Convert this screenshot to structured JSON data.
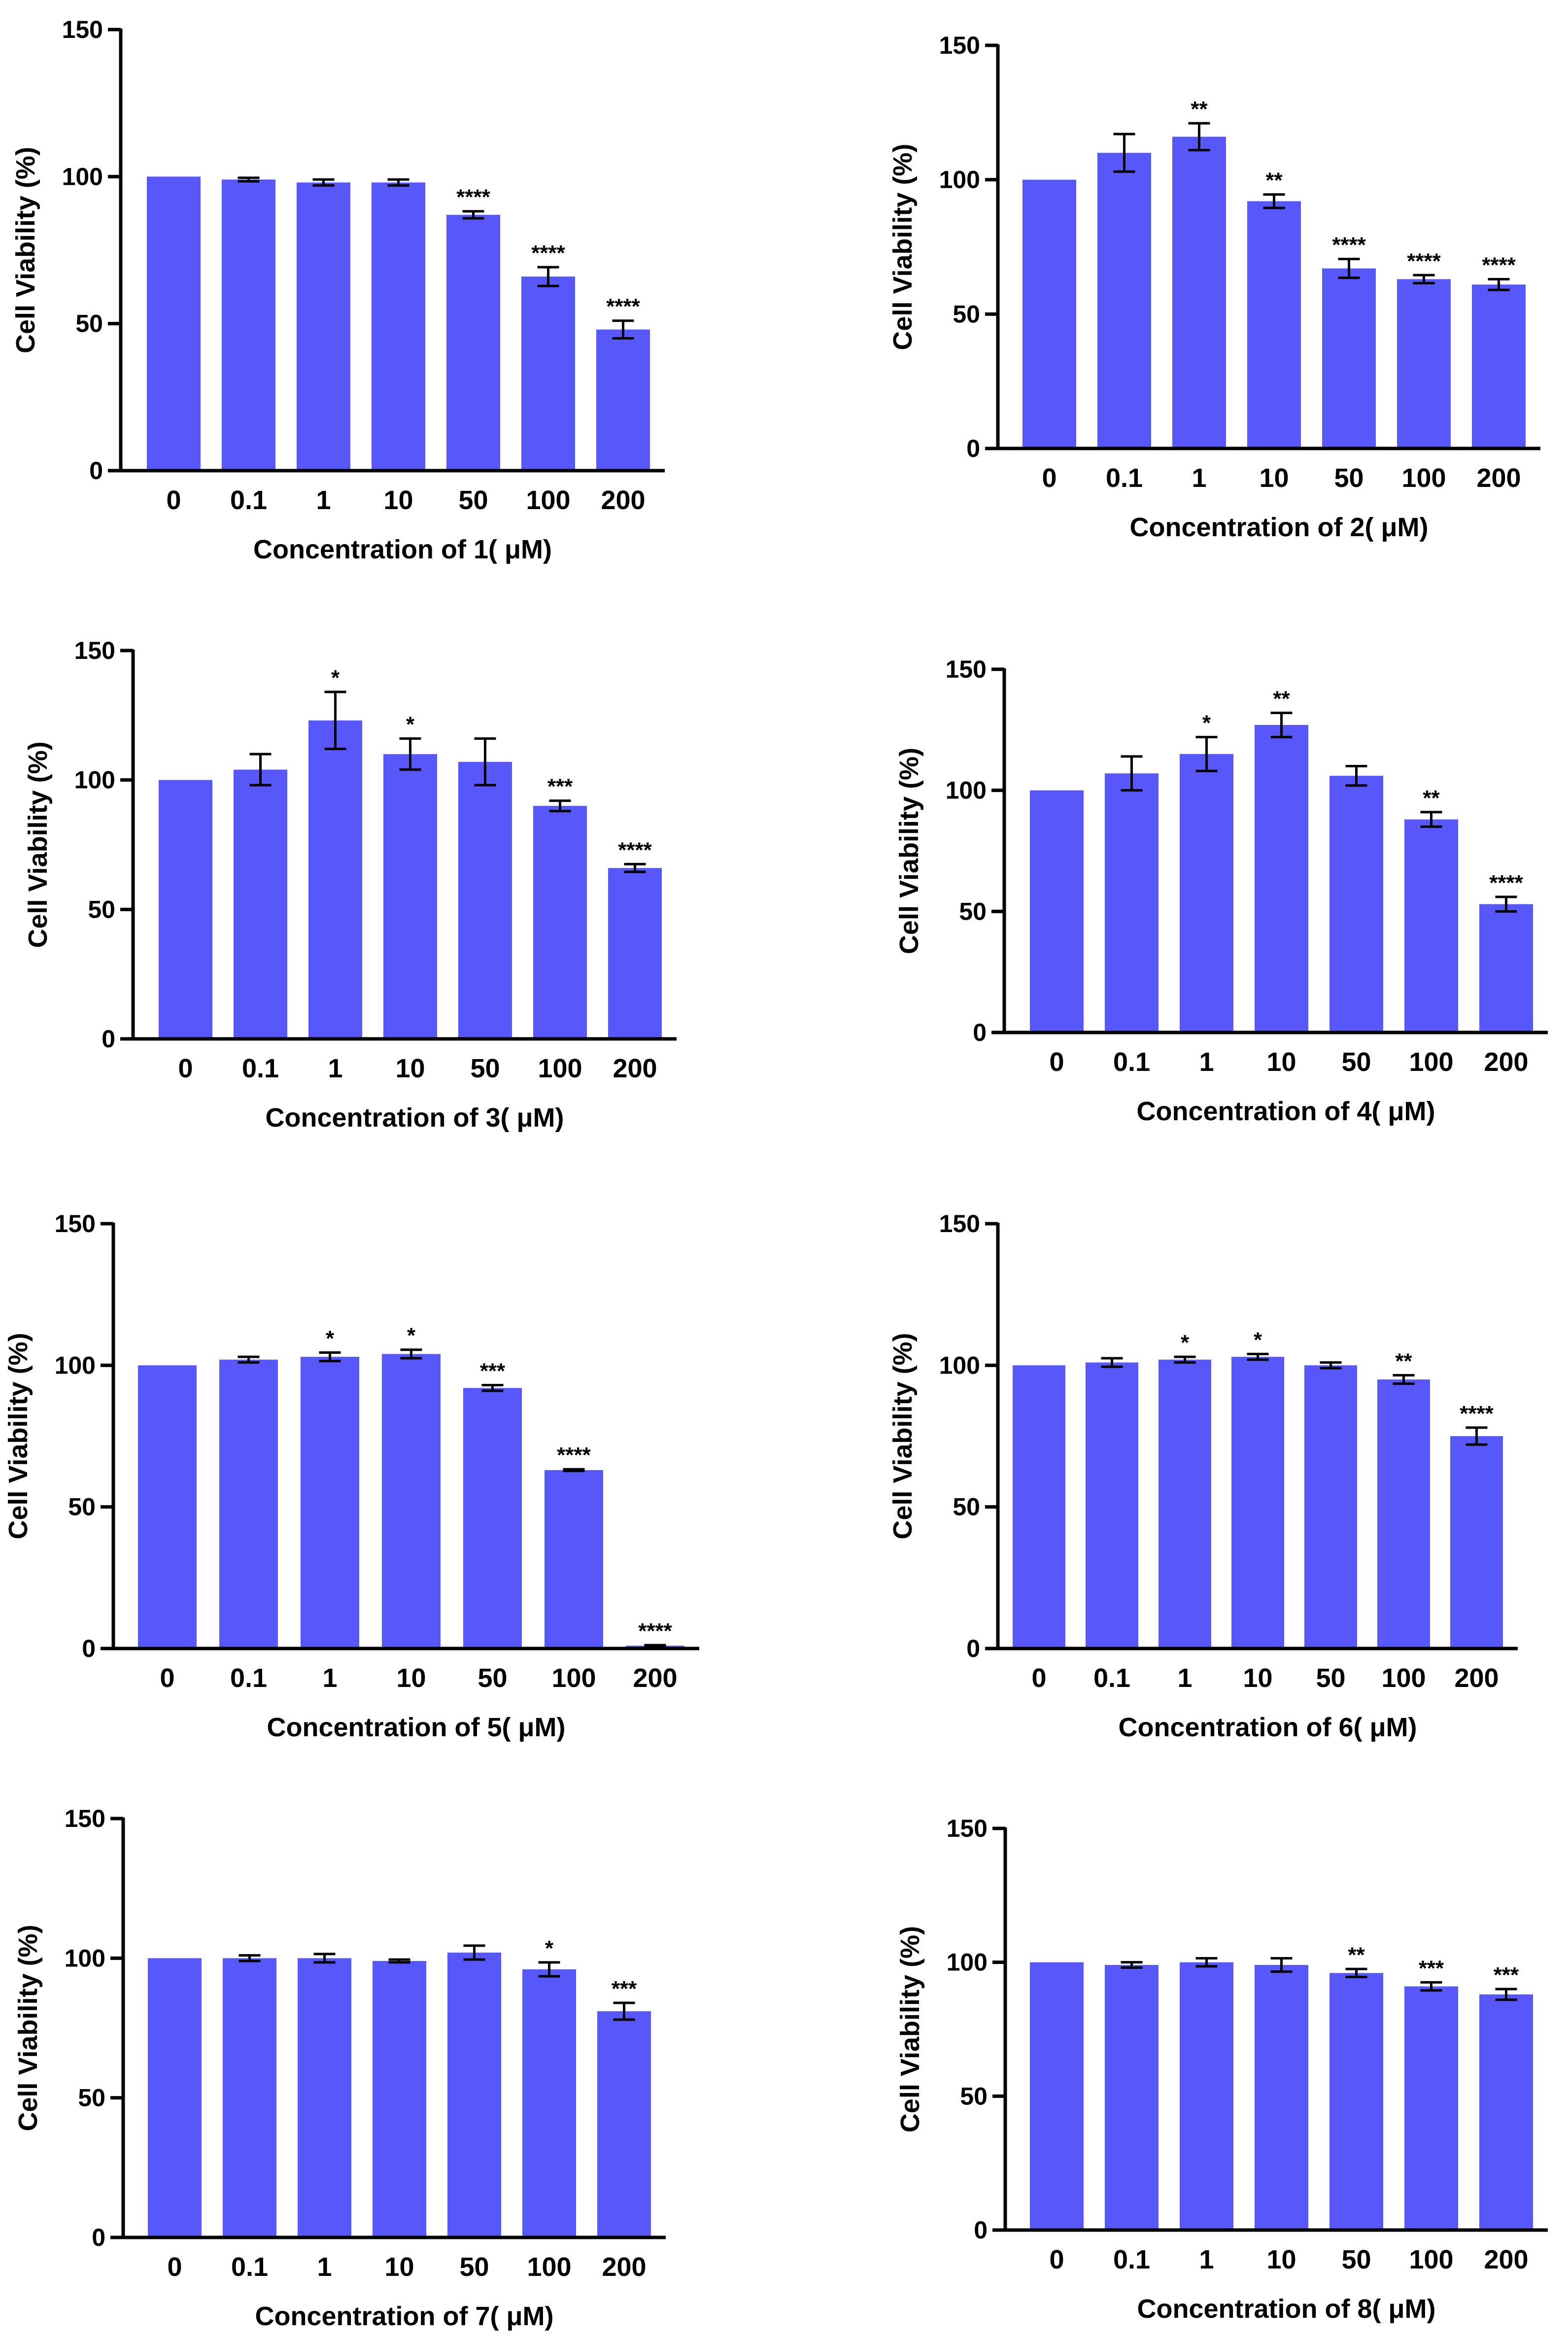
{
  "chart_data": [
    {
      "type": "bar",
      "title": "",
      "xlabel": "Concentration of 1( μM)",
      "ylabel": "Cell Viability (%)",
      "ylim": [
        0,
        150
      ],
      "yticks": [
        "0",
        "50",
        "100",
        "150"
      ],
      "categories": [
        "0",
        "0.1",
        "1",
        "10",
        "50",
        "100",
        "200"
      ],
      "values": [
        100,
        99,
        98,
        98,
        87,
        66,
        48
      ],
      "errors": [
        0,
        0.6,
        1,
        1,
        1.2,
        3.2,
        3
      ],
      "significance": [
        "",
        "",
        "",
        "",
        "****",
        "****",
        "****"
      ],
      "bar_color": "#5757fa",
      "grid": false
    },
    {
      "type": "bar",
      "title": "",
      "xlabel": "Concentration of 2( μM)",
      "ylabel": "Cell Viability (%)",
      "ylim": [
        0,
        150
      ],
      "yticks": [
        "0",
        "50",
        "100",
        "150"
      ],
      "categories": [
        "0",
        "0.1",
        "1",
        "10",
        "50",
        "100",
        "200"
      ],
      "values": [
        100,
        110,
        116,
        92,
        67,
        63,
        61
      ],
      "errors": [
        0,
        7,
        5,
        2.5,
        3.5,
        1.5,
        2
      ],
      "significance": [
        "",
        "",
        "**",
        "**",
        "****",
        "****",
        "****"
      ],
      "bar_color": "#5757fa",
      "grid": false
    },
    {
      "type": "bar",
      "title": "",
      "xlabel": "Concentration of 3( μM)",
      "ylabel": "Cell Viability (%)",
      "ylim": [
        0,
        150
      ],
      "yticks": [
        "0",
        "50",
        "100",
        "150"
      ],
      "categories": [
        "0",
        "0.1",
        "1",
        "10",
        "50",
        "100",
        "200"
      ],
      "values": [
        100,
        104,
        123,
        110,
        107,
        90,
        66
      ],
      "errors": [
        0,
        6,
        11,
        6,
        9,
        2,
        1.5
      ],
      "significance": [
        "",
        "",
        "*",
        "*",
        "",
        "***",
        "****"
      ],
      "bar_color": "#5757fa",
      "grid": false
    },
    {
      "type": "bar",
      "title": "",
      "xlabel": "Concentration of 4( μM)",
      "ylabel": "Cell Viability (%)",
      "ylim": [
        0,
        150
      ],
      "yticks": [
        "0",
        "50",
        "100",
        "150"
      ],
      "categories": [
        "0",
        "0.1",
        "1",
        "10",
        "50",
        "100",
        "200"
      ],
      "values": [
        100,
        107,
        115,
        127,
        106,
        88,
        53
      ],
      "errors": [
        0,
        7,
        7,
        5,
        4,
        3,
        3
      ],
      "significance": [
        "",
        "",
        "*",
        "**",
        "",
        "**",
        "****"
      ],
      "bar_color": "#5757fa",
      "grid": false
    },
    {
      "type": "bar",
      "title": "",
      "xlabel": "Concentration of 5( μM)",
      "ylabel": "Cell Viability (%)",
      "ylim": [
        0,
        150
      ],
      "yticks": [
        "0",
        "50",
        "100",
        "150"
      ],
      "categories": [
        "0",
        "0.1",
        "1",
        "10",
        "50",
        "100",
        "200"
      ],
      "values": [
        100,
        102,
        103,
        104,
        92,
        63,
        1
      ],
      "errors": [
        0,
        1,
        1.5,
        1.5,
        1,
        0.3,
        0.2
      ],
      "significance": [
        "",
        "",
        "*",
        "*",
        "***",
        "****",
        "****"
      ],
      "bar_color": "#5757fa",
      "grid": false
    },
    {
      "type": "bar",
      "title": "",
      "xlabel": "Concentration of 6( μM)",
      "ylabel": "Cell Viability (%)",
      "ylim": [
        0,
        150
      ],
      "yticks": [
        "0",
        "50",
        "100",
        "150"
      ],
      "categories": [
        "0",
        "0.1",
        "1",
        "10",
        "50",
        "100",
        "200"
      ],
      "values": [
        100,
        101,
        102,
        103,
        100,
        95,
        75
      ],
      "errors": [
        0,
        1.5,
        1,
        1,
        1,
        1.5,
        3
      ],
      "significance": [
        "",
        "",
        "*",
        "*",
        "",
        "**",
        "****"
      ],
      "bar_color": "#5757fa",
      "grid": false
    },
    {
      "type": "bar",
      "title": "",
      "xlabel": "Concentration of 7( μM)",
      "ylabel": "Cell Viability (%)",
      "ylim": [
        0,
        150
      ],
      "yticks": [
        "0",
        "50",
        "100",
        "150"
      ],
      "categories": [
        "0",
        "0.1",
        "1",
        "10",
        "50",
        "100",
        "200"
      ],
      "values": [
        100,
        100,
        100,
        99,
        102,
        96,
        81
      ],
      "errors": [
        0,
        1,
        1.5,
        0.5,
        2.5,
        2.5,
        3
      ],
      "significance": [
        "",
        "",
        "",
        "",
        "",
        "*",
        "***"
      ],
      "bar_color": "#5757fa",
      "grid": false
    },
    {
      "type": "bar",
      "title": "",
      "xlabel": "Concentration of 8( μM)",
      "ylabel": "Cell Viability (%)",
      "ylim": [
        0,
        150
      ],
      "yticks": [
        "0",
        "50",
        "100",
        "150"
      ],
      "categories": [
        "0",
        "0.1",
        "1",
        "10",
        "50",
        "100",
        "200"
      ],
      "values": [
        100,
        99,
        100,
        99,
        96,
        91,
        88
      ],
      "errors": [
        0,
        1,
        1.5,
        2.5,
        1.5,
        1.5,
        2
      ],
      "significance": [
        "",
        "",
        "",
        "",
        "**",
        "***",
        "***"
      ],
      "bar_color": "#5757fa",
      "grid": false
    }
  ]
}
